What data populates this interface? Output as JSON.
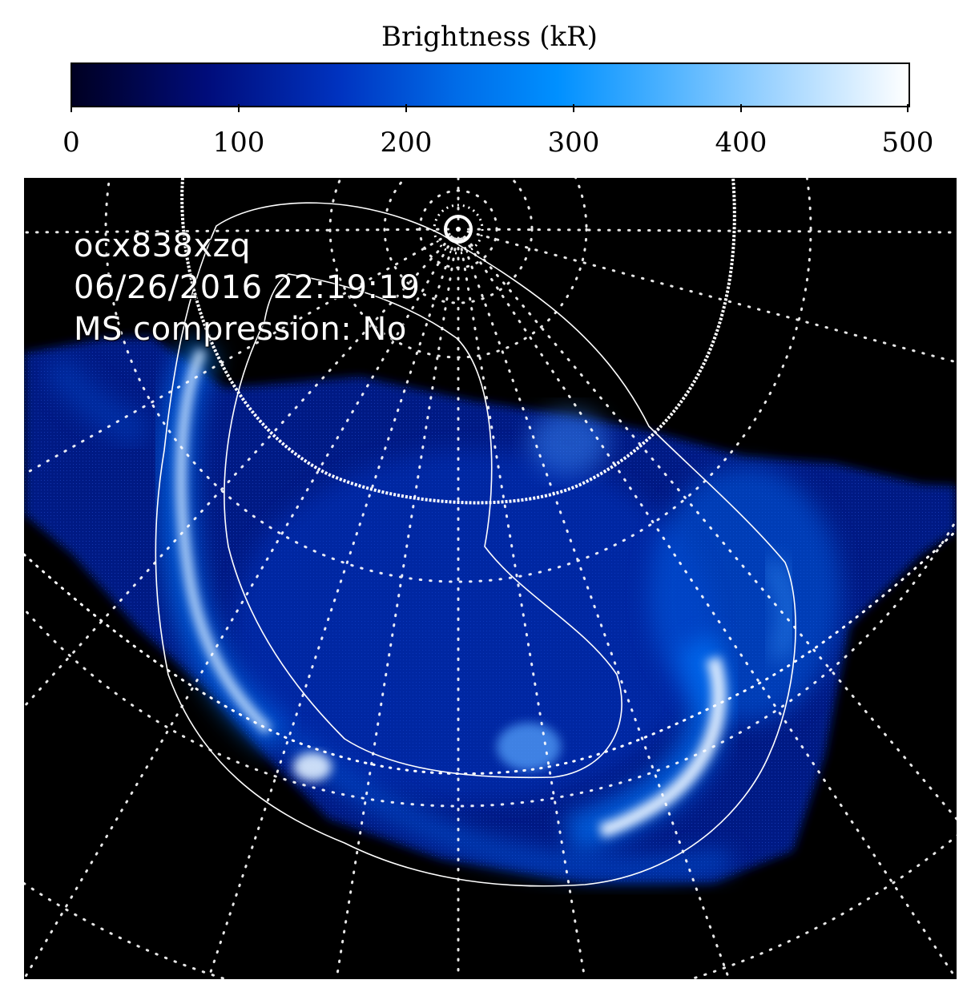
{
  "colorbar": {
    "title": "Brightness (kR)",
    "ticks": [
      "0",
      "100",
      "200",
      "300",
      "400",
      "500"
    ],
    "range": [
      0,
      500
    ],
    "colors": [
      "#000022",
      "#000c7a",
      "#0033c0",
      "#006ce8",
      "#0090ff",
      "#9fd4ff",
      "#ffffff"
    ]
  },
  "image_label": {
    "line1": "ocx838xzq",
    "line2": "06/26/2016 22:19:19",
    "line3": "MS compression: No"
  }
}
